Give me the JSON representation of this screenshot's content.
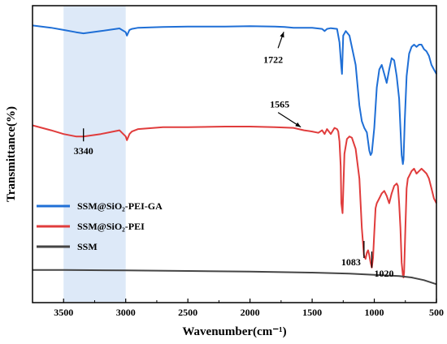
{
  "chart_data": {
    "type": "line",
    "xlabel": "Wavenumber(cm⁻¹)",
    "ylabel": "Transmittance(%)",
    "xlim": [
      3750,
      500
    ],
    "x_reversed": true,
    "y_axis_ticks": false,
    "grid": false,
    "legend_position": "left",
    "x_ticks": [
      3500,
      3000,
      2500,
      2000,
      1500,
      1000,
      500
    ],
    "highlight_band": {
      "from": 3500,
      "to": 3000,
      "color": "#dde9f8"
    },
    "series": [
      {
        "name": "SSM@SiO₂-PEI-GA",
        "color": "#1f6fd6",
        "x": [
          3750,
          3600,
          3500,
          3400,
          3340,
          3200,
          3050,
          3000,
          2990,
          2970,
          2950,
          2900,
          2700,
          2500,
          2200,
          2000,
          1800,
          1722,
          1650,
          1500,
          1420,
          1400,
          1380,
          1350,
          1300,
          1280,
          1265,
          1260,
          1250,
          1230,
          1200,
          1150,
          1120,
          1100,
          1080,
          1060,
          1040,
          1030,
          1020,
          1000,
          980,
          960,
          940,
          920,
          900,
          880,
          860,
          840,
          820,
          800,
          790,
          780,
          770,
          765,
          755,
          740,
          720,
          700,
          680,
          660,
          640,
          620,
          600,
          580,
          560,
          540,
          520,
          500
        ],
        "y": [
          97.5,
          96.5,
          95.5,
          94.5,
          94.0,
          95.0,
          96.2,
          94.5,
          93.0,
          95.5,
          96.0,
          96.5,
          96.8,
          97.0,
          97.0,
          97.2,
          97.0,
          96.8,
          96.5,
          96.5,
          96.0,
          95.0,
          96.0,
          96.3,
          96.0,
          90.0,
          79.0,
          76.0,
          93.0,
          95.0,
          93.0,
          80.0,
          62.0,
          55.0,
          52.0,
          50.0,
          42.0,
          40.0,
          41.0,
          52.0,
          70.0,
          78.0,
          80.0,
          76.0,
          72.0,
          78.0,
          83.0,
          82.0,
          75.0,
          65.0,
          52.0,
          40.0,
          36.0,
          38.0,
          55.0,
          75.0,
          85.0,
          88.0,
          89.0,
          88.0,
          89.0,
          89.0,
          87.0,
          86.0,
          84.0,
          80.0,
          78.0,
          76.0
        ]
      },
      {
        "name": "SSM@SiO₂-PEI",
        "color": "#e03c3c",
        "x": [
          3750,
          3600,
          3500,
          3400,
          3340,
          3200,
          3050,
          3000,
          2990,
          2970,
          2950,
          2900,
          2700,
          2500,
          2200,
          2000,
          1800,
          1650,
          1565,
          1500,
          1450,
          1420,
          1400,
          1380,
          1350,
          1320,
          1300,
          1290,
          1280,
          1270,
          1265,
          1255,
          1240,
          1220,
          1200,
          1180,
          1150,
          1120,
          1100,
          1083,
          1070,
          1060,
          1050,
          1040,
          1030,
          1020,
          1010,
          1000,
          990,
          980,
          960,
          940,
          920,
          900,
          880,
          860,
          840,
          820,
          810,
          800,
          790,
          780,
          770,
          765,
          760,
          750,
          740,
          730,
          720,
          700,
          680,
          660,
          640,
          620,
          600,
          580,
          560,
          540,
          520,
          500
        ],
        "y": [
          61.5,
          59.5,
          58.0,
          57.0,
          57.0,
          58.0,
          59.5,
          57.0,
          55.5,
          58.0,
          59.0,
          60.0,
          60.8,
          60.8,
          61.0,
          61.0,
          60.8,
          60.5,
          59.5,
          59.0,
          58.5,
          59.5,
          58.0,
          60.0,
          58.0,
          60.5,
          60.0,
          59.0,
          55.0,
          45.0,
          30.0,
          26.0,
          50.0,
          56.0,
          57.0,
          56.5,
          52.0,
          40.0,
          20.0,
          9.0,
          7.5,
          10.0,
          11.0,
          9.0,
          6.0,
          4.0,
          8.0,
          18.0,
          28.0,
          30.0,
          32.0,
          34.0,
          35.0,
          33.0,
          30.0,
          34.0,
          37.0,
          38.0,
          37.0,
          30.0,
          20.0,
          6.0,
          1.0,
          0.0,
          2.0,
          20.0,
          36.0,
          40.0,
          41.0,
          43.0,
          44.0,
          42.0,
          43.0,
          44.0,
          43.0,
          42.0,
          40.0,
          36.0,
          32.0,
          30.0
        ]
      },
      {
        "name": "SSM",
        "color": "#454545",
        "x": [
          3750,
          3500,
          3000,
          2500,
          2000,
          1500,
          1200,
          1000,
          800,
          700,
          600,
          500
        ],
        "y": [
          0.8,
          0.8,
          0.6,
          0.4,
          0.2,
          -0.2,
          -0.6,
          -1.0,
          -1.5,
          -2.0,
          -3.0,
          -4.5
        ]
      }
    ],
    "annotations": [
      {
        "label": "1722",
        "type": "arrow",
        "x": 1722,
        "series": 0
      },
      {
        "label": "1565",
        "type": "arrow",
        "x": 1565,
        "series": 1
      },
      {
        "label": "3340",
        "type": "tick",
        "x": 3340,
        "series": 1
      },
      {
        "label": "1083",
        "type": "tick",
        "x": 1083,
        "series": 1
      },
      {
        "label": "1020",
        "type": "tick",
        "x": 1020,
        "series": 1
      }
    ]
  }
}
